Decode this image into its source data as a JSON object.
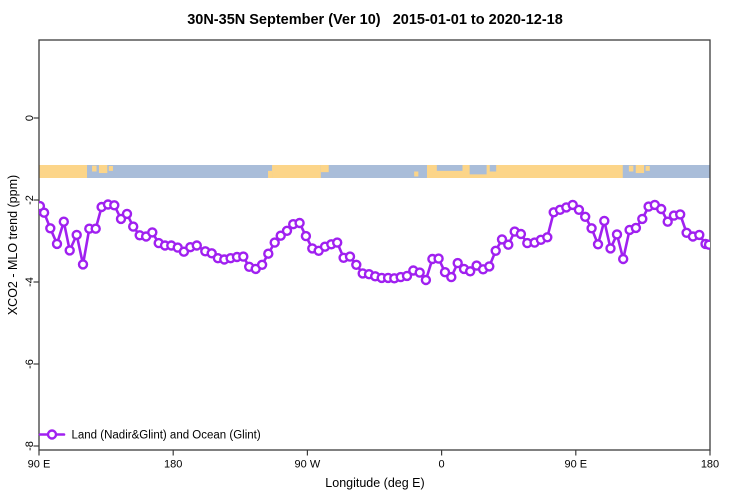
{
  "title": "30N-35N September (Ver 10)   2015-01-01 to 2020-12-18",
  "legend": {
    "label": "Land (Nadir&Glint) and Ocean (Glint)"
  },
  "axes": {
    "xlabel": "Longitude (deg E)",
    "ylabel": "XCO2 - MLO trend (ppm)",
    "x_ticks": [
      {
        "lon": 90,
        "label": "90 E"
      },
      {
        "lon": 180,
        "label": "180"
      },
      {
        "lon": 270,
        "label": "90 W"
      },
      {
        "lon": 360,
        "label": "0"
      },
      {
        "lon": 450,
        "label": "90 E"
      },
      {
        "lon": 540,
        "label": "180"
      }
    ],
    "y_ticks": [
      {
        "value": 0,
        "label": "0"
      },
      {
        "value": -2,
        "label": "-2"
      },
      {
        "value": -4,
        "label": "-4"
      },
      {
        "value": -6,
        "label": "-6"
      },
      {
        "value": -8,
        "label": "-8"
      }
    ]
  },
  "colors": {
    "series": "#a020f0",
    "land": "#fcd589",
    "ocean": "#a9bdd9",
    "axis": "#3c3c3c",
    "text": "#000000"
  },
  "chart_data": {
    "type": "line",
    "title": "30N-35N September (Ver 10)   2015-01-01 to 2020-12-18",
    "xlabel": "Longitude (deg E)",
    "ylabel": "XCO2 - MLO trend (ppm)",
    "xlim": [
      90,
      540
    ],
    "ylim": [
      -8.1,
      1.9
    ],
    "grid": false,
    "legend_position": "bottom-left-inside",
    "marker": "open-circle",
    "series_name": "Land (Nadir&Glint) and Ocean (Glint)",
    "x": [
      90.6,
      93.4,
      97.6,
      102.1,
      106.6,
      110.6,
      115.3,
      119.5,
      123.7,
      128.0,
      132.0,
      136.3,
      140.5,
      145.0,
      149.0,
      153.2,
      157.5,
      161.8,
      166.0,
      170.3,
      174.5,
      178.7,
      183.0,
      187.2,
      191.5,
      195.8,
      201.5,
      205.8,
      210.0,
      214.3,
      218.5,
      222.8,
      227.0,
      231.0,
      235.3,
      239.6,
      243.8,
      248.1,
      252.1,
      256.3,
      260.5,
      264.8,
      269.0,
      273.3,
      277.6,
      281.8,
      286.0,
      290.0,
      294.3,
      298.6,
      302.8,
      307.1,
      311.3,
      315.5,
      319.8,
      324.1,
      328.3,
      332.6,
      336.8,
      341.0,
      345.3,
      349.5,
      353.8,
      358.0,
      362.3,
      366.5,
      370.8,
      375.0,
      379.2,
      383.5,
      387.8,
      392.0,
      396.3,
      400.5,
      404.7,
      409.0,
      413.2,
      417.5,
      422.4,
      426.6,
      430.9,
      435.2,
      439.4,
      443.6,
      447.9,
      452.1,
      456.3,
      460.6,
      464.9,
      469.1,
      473.3,
      477.6,
      481.8,
      486.1,
      490.3,
      494.6,
      498.8,
      503.0,
      507.3,
      511.6,
      515.8,
      520.0,
      524.3,
      528.5,
      532.8,
      537.0,
      539.3
    ],
    "values": [
      -2.15,
      -2.31,
      -2.69,
      -3.07,
      -2.53,
      -3.23,
      -2.85,
      -3.57,
      -2.7,
      -2.7,
      -2.17,
      -2.11,
      -2.13,
      -2.46,
      -2.34,
      -2.65,
      -2.86,
      -2.89,
      -2.79,
      -3.05,
      -3.11,
      -3.11,
      -3.16,
      -3.26,
      -3.15,
      -3.11,
      -3.25,
      -3.3,
      -3.42,
      -3.45,
      -3.42,
      -3.39,
      -3.38,
      -3.63,
      -3.68,
      -3.58,
      -3.31,
      -3.04,
      -2.87,
      -2.75,
      -2.59,
      -2.56,
      -2.88,
      -3.18,
      -3.24,
      -3.14,
      -3.08,
      -3.04,
      -3.41,
      -3.38,
      -3.58,
      -3.79,
      -3.81,
      -3.86,
      -3.9,
      -3.9,
      -3.91,
      -3.88,
      -3.85,
      -3.72,
      -3.77,
      -3.95,
      -3.44,
      -3.43,
      -3.76,
      -3.88,
      -3.54,
      -3.68,
      -3.74,
      -3.6,
      -3.69,
      -3.62,
      -3.24,
      -2.96,
      -3.09,
      -2.77,
      -2.83,
      -3.05,
      -3.04,
      -2.97,
      -2.91,
      -2.3,
      -2.24,
      -2.18,
      -2.12,
      -2.24,
      -2.41,
      -2.69,
      -3.08,
      -2.51,
      -3.18,
      -2.84,
      -3.44,
      -2.73,
      -2.68,
      -2.46,
      -2.16,
      -2.12,
      -2.22,
      -2.53,
      -2.38,
      -2.35,
      -2.8,
      -2.89,
      -2.85,
      -3.07,
      -3.09
    ],
    "map_strip": {
      "description": "land/ocean strip for 30N-35N across plotted longitudes",
      "value_top": -1.15,
      "value_bottom": -1.46,
      "ocean_span": [
        90,
        540
      ],
      "land_full": [
        [
          90,
          122.2
        ],
        [
          246.3,
          279.0
        ],
        [
          350.2,
          481.5
        ]
      ],
      "land_patches": [
        {
          "lon": [
            125.6,
            128.6
          ],
          "frac": [
            0.05,
            0.5
          ]
        },
        {
          "lon": [
            130.2,
            135.8
          ],
          "frac": [
            0.0,
            0.62
          ]
        },
        {
          "lon": [
            136.8,
            139.6
          ],
          "frac": [
            0.08,
            0.45
          ]
        },
        {
          "lon": [
            243.6,
            246.3
          ],
          "frac": [
            0.45,
            1.0
          ]
        },
        {
          "lon": [
            279.0,
            284.3
          ],
          "frac": [
            0.0,
            0.55
          ]
        },
        {
          "lon": [
            341.6,
            344.4
          ],
          "frac": [
            0.5,
            0.88
          ]
        },
        {
          "lon": [
            485.6,
            488.6
          ],
          "frac": [
            0.05,
            0.5
          ]
        },
        {
          "lon": [
            490.2,
            495.8
          ],
          "frac": [
            0.0,
            0.62
          ]
        },
        {
          "lon": [
            496.8,
            499.6
          ],
          "frac": [
            0.08,
            0.45
          ]
        }
      ],
      "ocean_patches": [
        {
          "lon": [
            356.8,
            374.0
          ],
          "frac": [
            0.0,
            0.45
          ]
        },
        {
          "lon": [
            378.8,
            390.2
          ],
          "frac": [
            0.0,
            0.72
          ]
        },
        {
          "lon": [
            392.3,
            396.6
          ],
          "frac": [
            0.0,
            0.5
          ]
        }
      ]
    }
  }
}
